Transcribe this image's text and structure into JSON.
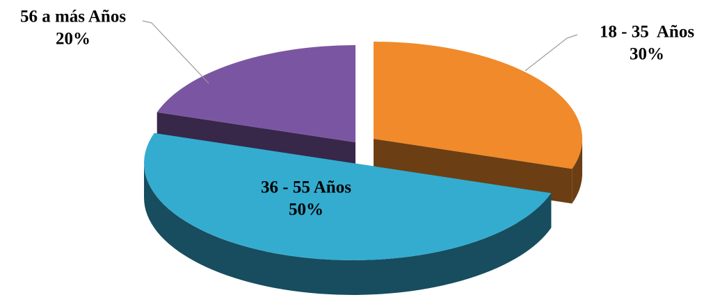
{
  "chart_data": {
    "type": "pie",
    "categories": [
      "18 - 35  Años",
      "36 - 55 Años",
      "56 a más Años"
    ],
    "values": [
      30,
      50,
      20
    ],
    "value_labels": [
      "30%",
      "50%",
      "20%"
    ],
    "colors": [
      "#f08a2a",
      "#34acd0",
      "#7a56a2"
    ]
  }
}
